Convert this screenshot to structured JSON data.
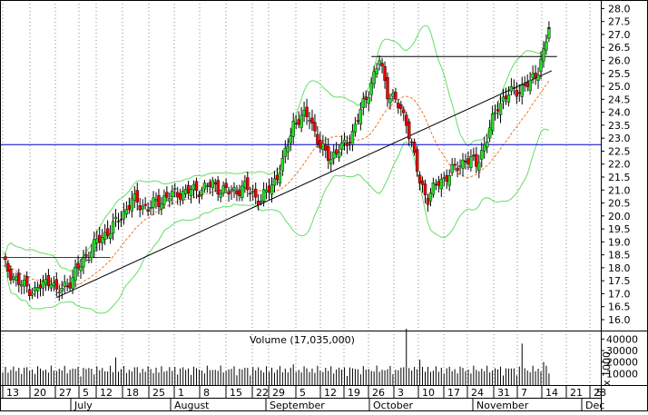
{
  "chart_data": {
    "type": "candlestick",
    "title": "",
    "volume_label": "Volume (17,035,000)",
    "volume_multiplier_label": "x 1000",
    "price_axis": {
      "min": 16.0,
      "max": 28.0,
      "step": 0.5,
      "ticks": [
        "28.0",
        "27.5",
        "27.0",
        "26.5",
        "26.0",
        "25.5",
        "25.0",
        "24.5",
        "24.0",
        "23.5",
        "23.0",
        "22.5",
        "22.0",
        "21.5",
        "21.0",
        "20.5",
        "20.0",
        "19.5",
        "19.0",
        "18.5",
        "18.0",
        "17.5",
        "17.0",
        "16.5",
        "16.0"
      ]
    },
    "volume_axis": {
      "min": 0,
      "max": 45000,
      "ticks": [
        "40000",
        "30000",
        "20000",
        "10000"
      ]
    },
    "date_ticks": [
      "13",
      "20",
      "27",
      "5",
      "12",
      "18",
      "25",
      "1",
      "8",
      "15",
      "22",
      "29",
      "5",
      "12",
      "19",
      "26",
      "3",
      "10",
      "17",
      "24",
      "31",
      "7",
      "14",
      "21",
      "28",
      "5"
    ],
    "months": [
      "July",
      "August",
      "September",
      "October",
      "November",
      "Dec"
    ],
    "horizontal_line_price": 22.75,
    "resistance_line_price": 26.15,
    "early_resistance_price": 18.4,
    "trendline": [
      {
        "bar": 20,
        "price": 16.85
      },
      {
        "bar": 204,
        "price": 25.6
      }
    ],
    "last_price": 27.25,
    "colors": {
      "up": "#22dd22",
      "down": "#ee0000",
      "band": "#66dd66",
      "ma": "#ee7722",
      "hline": "#0000cc",
      "line": "#000000"
    }
  }
}
